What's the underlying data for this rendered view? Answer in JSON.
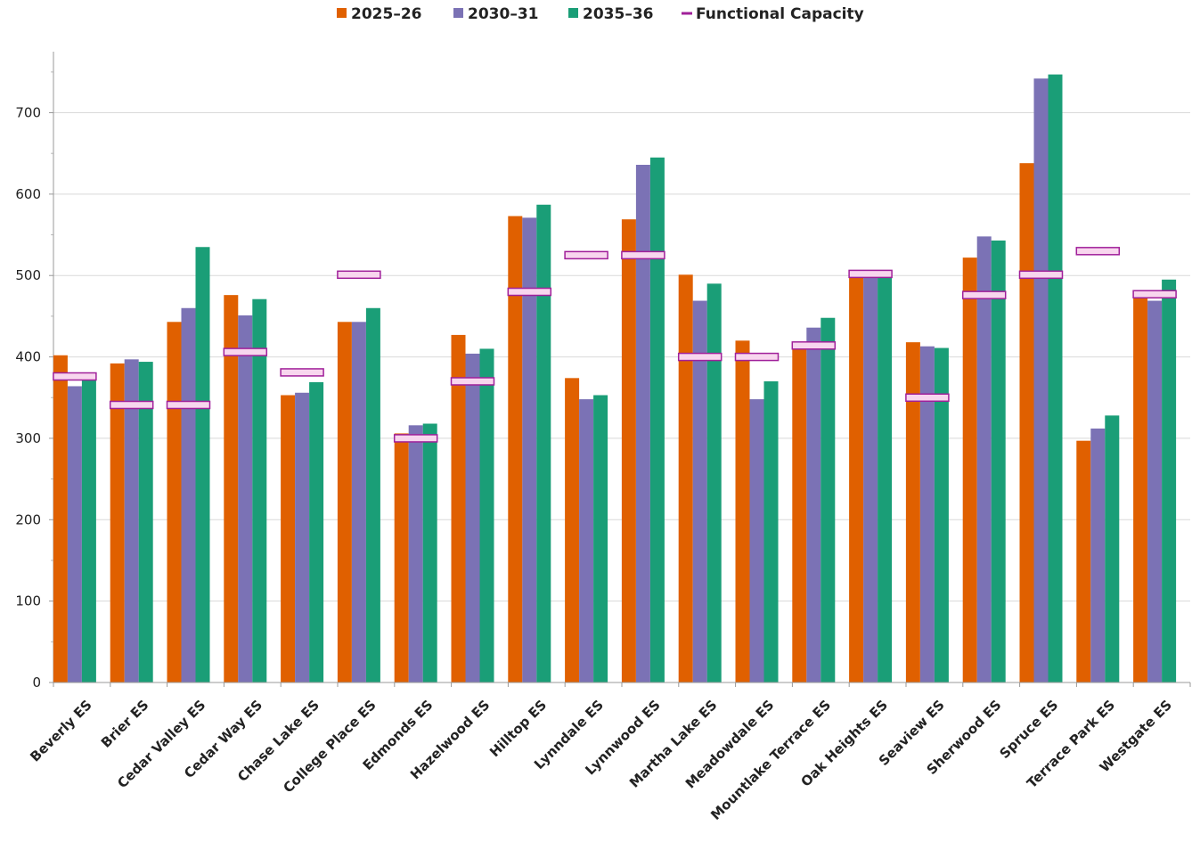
{
  "chart_data": {
    "type": "bar",
    "categories": [
      "Beverly ES",
      "Brier ES",
      "Cedar Valley ES",
      "Cedar Way ES",
      "Chase Lake ES",
      "College Place ES",
      "Edmonds ES",
      "Hazelwood ES",
      "Hilltop ES",
      "Lynndale ES",
      "Lynnwood ES",
      "Martha Lake ES",
      "Meadowdale ES",
      "Mountlake Terrace ES",
      "Oak Heights ES",
      "Seaview ES",
      "Sherwood ES",
      "Spruce ES",
      "Terrace Park ES",
      "Westgate ES"
    ],
    "series": [
      {
        "name": "2025–26",
        "color": "#e06000",
        "values": [
          402,
          392,
          443,
          476,
          353,
          443,
          306,
          427,
          573,
          374,
          569,
          501,
          420,
          413,
          505,
          418,
          522,
          638,
          297,
          477
        ]
      },
      {
        "name": "2030–31",
        "color": "#7b72b5",
        "values": [
          364,
          397,
          460,
          451,
          356,
          443,
          316,
          404,
          571,
          348,
          636,
          469,
          348,
          436,
          500,
          413,
          548,
          742,
          312,
          469
        ]
      },
      {
        "name": "2035–36",
        "color": "#1a9e77",
        "values": [
          378,
          394,
          535,
          471,
          369,
          460,
          318,
          410,
          587,
          353,
          645,
          490,
          370,
          448,
          499,
          411,
          543,
          747,
          328,
          495
        ]
      }
    ],
    "capacity": {
      "name": "Functional Capacity",
      "color": "#a0209a",
      "fill": "#f8d6ee",
      "values": [
        376,
        341,
        341,
        406,
        381,
        501,
        300,
        370,
        480,
        525,
        525,
        400,
        400,
        414,
        502,
        350,
        476,
        501,
        530,
        477
      ]
    },
    "legend": [
      "2025–26",
      "2030–31",
      "2035–36",
      "Functional Capacity"
    ],
    "legend_position": "top-center",
    "yticks": [
      0,
      100,
      200,
      300,
      400,
      500,
      600,
      700
    ],
    "ylim": [
      0,
      775
    ],
    "grid": true
  }
}
